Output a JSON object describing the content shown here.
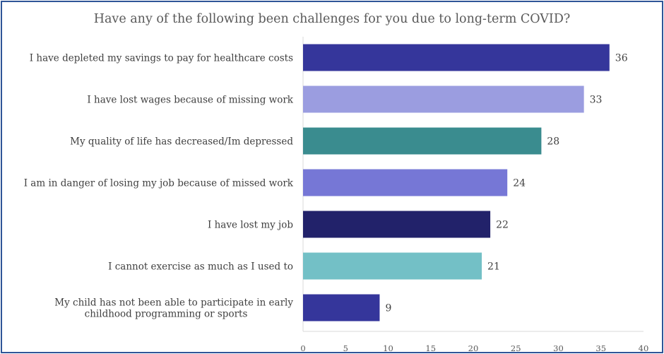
{
  "chart_data": {
    "type": "bar",
    "orientation": "horizontal",
    "title": "Have any of the following been challenges for you due to long-term COVID?",
    "categories": [
      "I have depleted my savings to pay for healthcare costs",
      "I have lost wages because of missing work",
      "My quality of life has decreased/Im depressed",
      "I am in danger of losing my job because of missed work",
      "I have lost my job",
      "I cannot exercise as much as I used to",
      "My child has not been able to participate in early childhood programming or sports"
    ],
    "values": [
      36,
      33,
      28,
      24,
      22,
      21,
      9
    ],
    "colors": [
      "#35369b",
      "#9b9de0",
      "#3a8c8f",
      "#7677d6",
      "#22226a",
      "#73c0c6",
      "#35369b"
    ],
    "xlim": [
      0,
      40
    ],
    "xticks": [
      0,
      5,
      10,
      15,
      20,
      25,
      30,
      35,
      40
    ],
    "grid": false,
    "legend": "none"
  }
}
